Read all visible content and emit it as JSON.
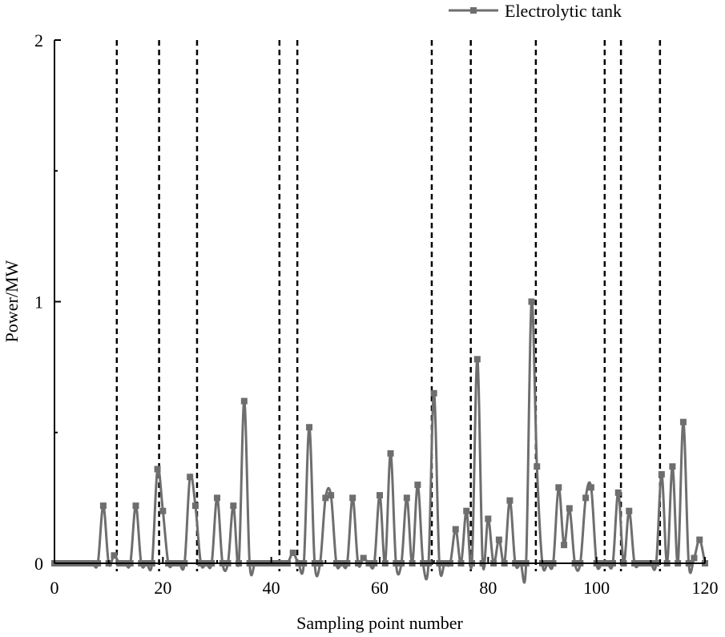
{
  "chart_data": {
    "type": "line",
    "xlabel": "Sampling point number",
    "ylabel": "Power/MW",
    "xlim": [
      0,
      120
    ],
    "ylim": [
      0,
      2
    ],
    "x_ticks": [
      0,
      20,
      40,
      60,
      80,
      100,
      120
    ],
    "y_ticks": [
      0,
      1,
      2
    ],
    "x_tick_labels": [
      "0",
      "20",
      "40",
      "60",
      "80",
      "100",
      "120"
    ],
    "y_tick_labels": [
      "0",
      "1",
      "2"
    ],
    "grid": false,
    "legend_position": "top-right",
    "line_color": "#6e6e6e",
    "marker_color": "#6e6e6e",
    "vline_color": "#000000",
    "vlines": [
      11.5,
      19.3,
      26.3,
      41.5,
      44.8,
      69.6,
      76.8,
      88.8,
      101.5,
      104.5,
      111.7
    ],
    "series": [
      {
        "name": "Electrolytic tank",
        "x": [
          0,
          1,
          2,
          3,
          4,
          5,
          6,
          7,
          8,
          9,
          10,
          11,
          12,
          13,
          14,
          15,
          16,
          17,
          18,
          19,
          20,
          21,
          22,
          23,
          24,
          25,
          26,
          27,
          28,
          29,
          30,
          31,
          32,
          33,
          34,
          35,
          36,
          37,
          38,
          39,
          40,
          41,
          42,
          43,
          44,
          45,
          46,
          47,
          48,
          49,
          50,
          51,
          52,
          53,
          54,
          55,
          56,
          57,
          58,
          59,
          60,
          61,
          62,
          63,
          64,
          65,
          66,
          67,
          68,
          69,
          70,
          71,
          72,
          73,
          74,
          75,
          76,
          77,
          78,
          79,
          80,
          81,
          82,
          83,
          84,
          85,
          86,
          87,
          88,
          89,
          90,
          91,
          92,
          93,
          94,
          95,
          96,
          97,
          98,
          99,
          100,
          101,
          102,
          103,
          104,
          105,
          106,
          107,
          108,
          109,
          110,
          111,
          112,
          113,
          114,
          115,
          116,
          117,
          118,
          119,
          120
        ],
        "values": [
          0,
          0,
          0,
          0,
          0,
          0,
          0,
          0,
          0,
          0.22,
          0,
          0.03,
          0,
          0,
          0,
          0.22,
          0,
          0,
          0,
          0.36,
          0.2,
          0,
          0,
          0,
          0,
          0.33,
          0.22,
          0,
          0,
          0,
          0.25,
          0,
          0,
          0.22,
          0,
          0.62,
          0,
          0,
          0,
          0,
          0,
          0,
          0,
          0,
          0.04,
          0,
          0,
          0.52,
          0,
          0,
          0.25,
          0.26,
          0,
          0,
          0,
          0.25,
          0,
          0.02,
          0,
          0,
          0.26,
          0,
          0.42,
          0,
          0,
          0.25,
          0,
          0.3,
          0,
          0,
          0.65,
          0,
          0,
          0,
          0.13,
          0,
          0.2,
          0,
          0.78,
          0,
          0.17,
          0,
          0.09,
          0,
          0.24,
          0,
          0,
          0,
          1.0,
          0.37,
          0,
          0,
          0,
          0.29,
          0.07,
          0.21,
          0,
          0,
          0.25,
          0.29,
          0,
          0,
          0,
          0,
          0.27,
          0,
          0.2,
          0,
          0,
          0,
          0,
          0,
          0.34,
          0,
          0.37,
          0,
          0.54,
          0,
          0.02,
          0.09,
          0
        ]
      }
    ]
  }
}
